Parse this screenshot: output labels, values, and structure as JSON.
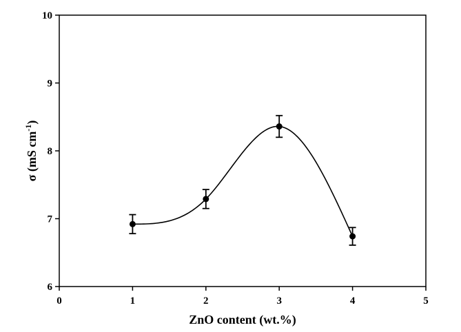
{
  "chart_data": {
    "type": "scatter",
    "title": "",
    "xlabel": "ZnO content (wt.%)",
    "ylabel_main": "σ (mS cm",
    "ylabel_sup": "-1",
    "ylabel_close": ")",
    "xlim": [
      0,
      5
    ],
    "ylim": [
      6,
      10
    ],
    "xticks": [
      "0",
      "1",
      "2",
      "3",
      "4",
      "5"
    ],
    "yticks": [
      "6",
      "7",
      "8",
      "9",
      "10"
    ],
    "grid": false,
    "legend": "none",
    "series": [
      {
        "x": [
          1,
          2,
          3,
          4
        ],
        "y": [
          6.92,
          7.29,
          8.36,
          6.74
        ],
        "yerr": [
          0.14,
          0.14,
          0.16,
          0.13
        ],
        "smooth_fit": true
      }
    ]
  }
}
